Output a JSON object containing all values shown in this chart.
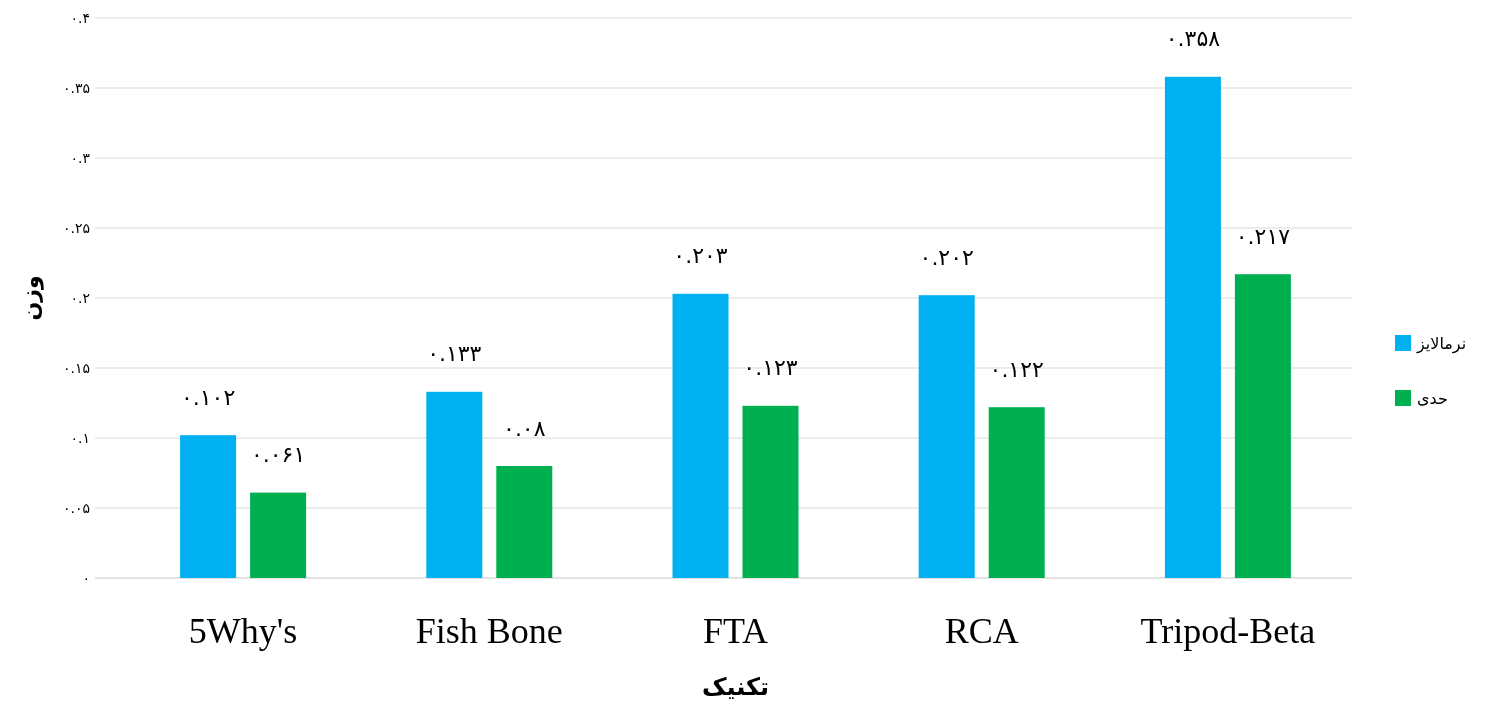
{
  "chart_data": {
    "type": "bar",
    "categories": [
      "5Why's",
      "Fish Bone",
      "FTA",
      "RCA",
      "Tripod-Beta"
    ],
    "xlabel": "تکنیک",
    "ylabel": "وزن",
    "series": [
      {
        "name": "نرمالایز",
        "color": "#00b0f0",
        "values": [
          0.102,
          0.133,
          0.203,
          0.202,
          0.358
        ],
        "value_labels": [
          "۰.۱۰۲",
          "۰.۱۳۳",
          "۰.۲۰۳",
          "۰.۲۰۲",
          "۰.۳۵۸"
        ]
      },
      {
        "name": "حدی",
        "color": "#00b050",
        "values": [
          0.061,
          0.08,
          0.123,
          0.122,
          0.217
        ],
        "value_labels": [
          "۰.۰۶۱",
          "۰.۰۸",
          "۰.۱۲۳",
          "۰.۱۲۲",
          "۰.۲۱۷"
        ]
      }
    ],
    "ylim": [
      0,
      0.4
    ],
    "yticks": [
      {
        "value": 0,
        "label": "۰"
      },
      {
        "value": 0.05,
        "label": "۰.۰۵"
      },
      {
        "value": 0.1,
        "label": "۰.۱"
      },
      {
        "value": 0.15,
        "label": "۰.۱۵"
      },
      {
        "value": 0.2,
        "label": "۰.۲"
      },
      {
        "value": 0.25,
        "label": "۰.۲۵"
      },
      {
        "value": 0.3,
        "label": "۰.۳"
      },
      {
        "value": 0.35,
        "label": "۰.۳۵"
      },
      {
        "value": 0.4,
        "label": "۰.۴"
      }
    ],
    "grid": "y",
    "legend": "right"
  }
}
